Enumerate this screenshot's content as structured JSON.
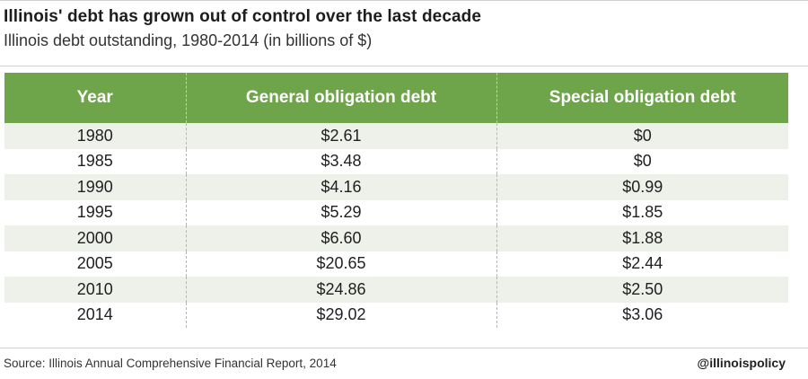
{
  "header": {
    "title": "Illinois' debt has grown out of control over the last decade",
    "subtitle": "Illinois debt outstanding, 1980-2014 (in billions of $)"
  },
  "chart_data": {
    "type": "table",
    "columns": [
      "Year",
      "General obligation debt",
      "Special obligation debt"
    ],
    "rows": [
      [
        "1980",
        "$2.61",
        "$0"
      ],
      [
        "1985",
        "$3.48",
        "$0"
      ],
      [
        "1990",
        "$4.16",
        "$0.99"
      ],
      [
        "1995",
        "$5.29",
        "$1.85"
      ],
      [
        "2000",
        "$6.60",
        "$1.88"
      ],
      [
        "2005",
        "$20.65",
        "$2.44"
      ],
      [
        "2010",
        "$24.86",
        "$2.50"
      ],
      [
        "2014",
        "$29.02",
        "$3.06"
      ]
    ],
    "header_color": "#6fa54a",
    "stripe_color": "#edf1ea"
  },
  "footer": {
    "source": "Source: Illinois Annual Comprehensive Financial Report, 2014",
    "handle": "@illinoispolicy"
  }
}
